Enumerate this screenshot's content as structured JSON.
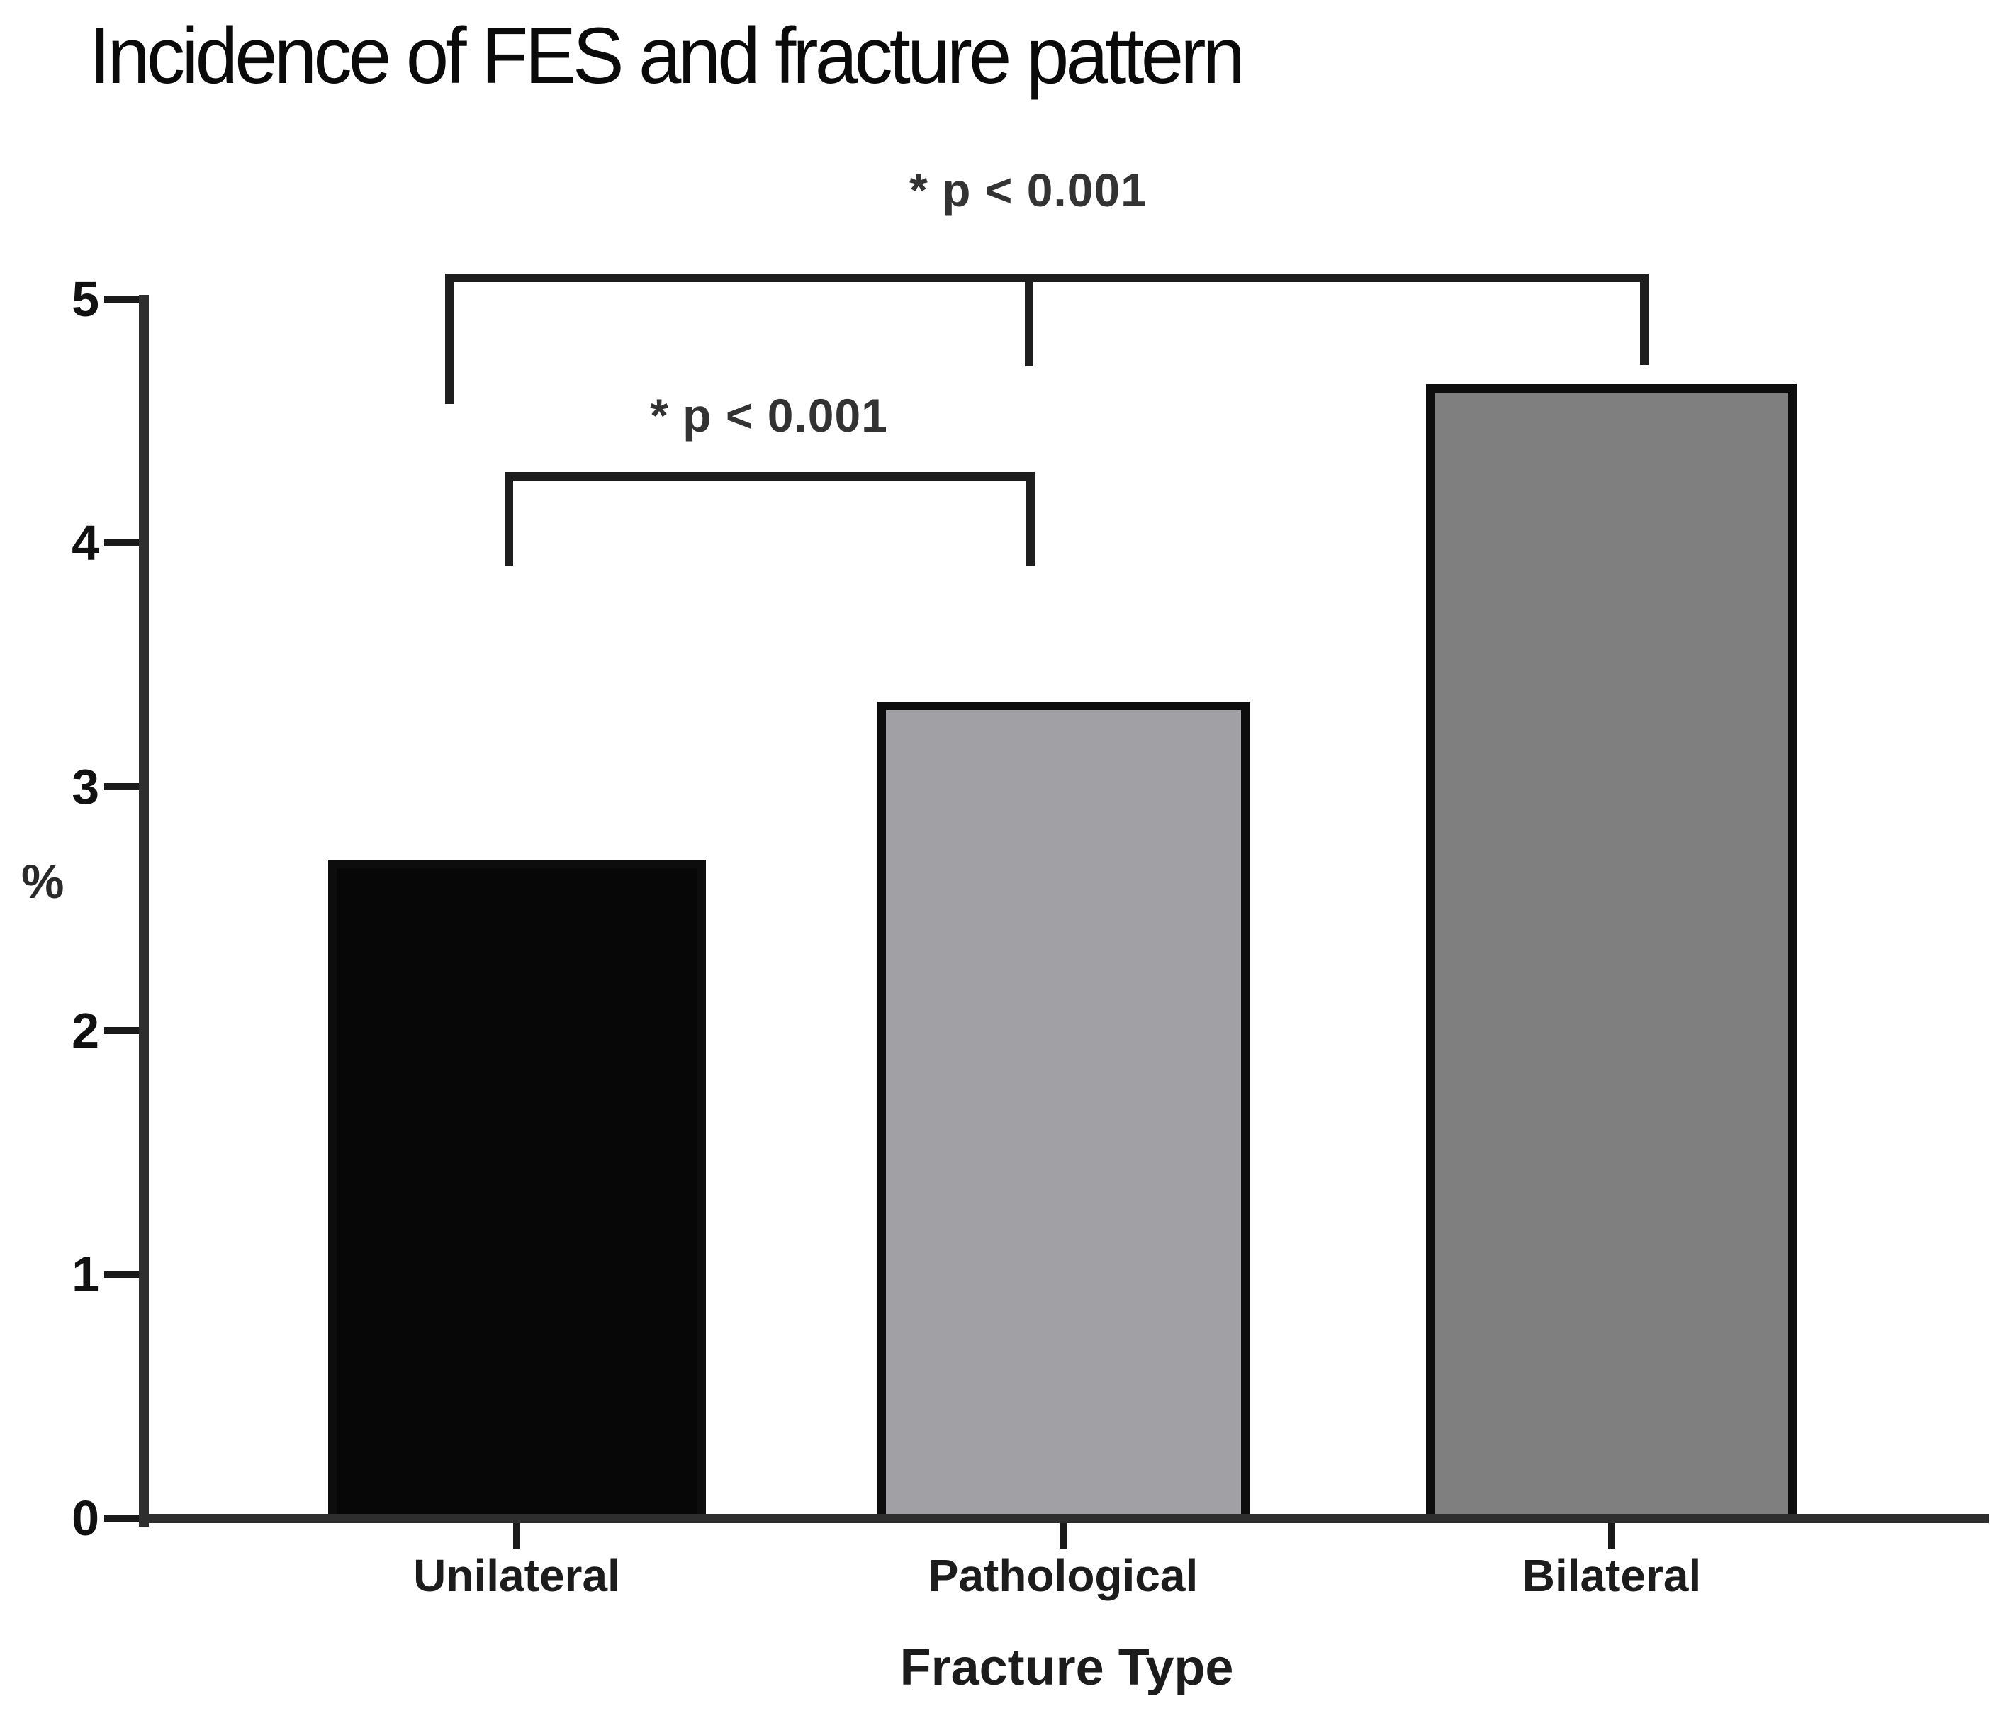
{
  "chart_data": {
    "type": "bar",
    "title": "Incidence of FES and fracture pattern",
    "categories": [
      "Unilateral",
      "Pathological",
      "Bilateral"
    ],
    "values": [
      2.7,
      3.35,
      4.65
    ],
    "bar_colors": [
      "#070707",
      "#a1a1a5",
      "#7f7f7f"
    ],
    "xlabel": "Fracture Type",
    "ylabel": "%",
    "ylim": [
      0,
      5
    ],
    "yticks": [
      0,
      1,
      2,
      3,
      4,
      5
    ],
    "grid": false,
    "legend": "none",
    "annotations": [
      {
        "text": "* p < 0.001",
        "compares": [
          "Unilateral",
          "Bilateral"
        ]
      },
      {
        "text": "* p < 0.001",
        "compares": [
          "Unilateral",
          "Pathological"
        ]
      }
    ]
  }
}
